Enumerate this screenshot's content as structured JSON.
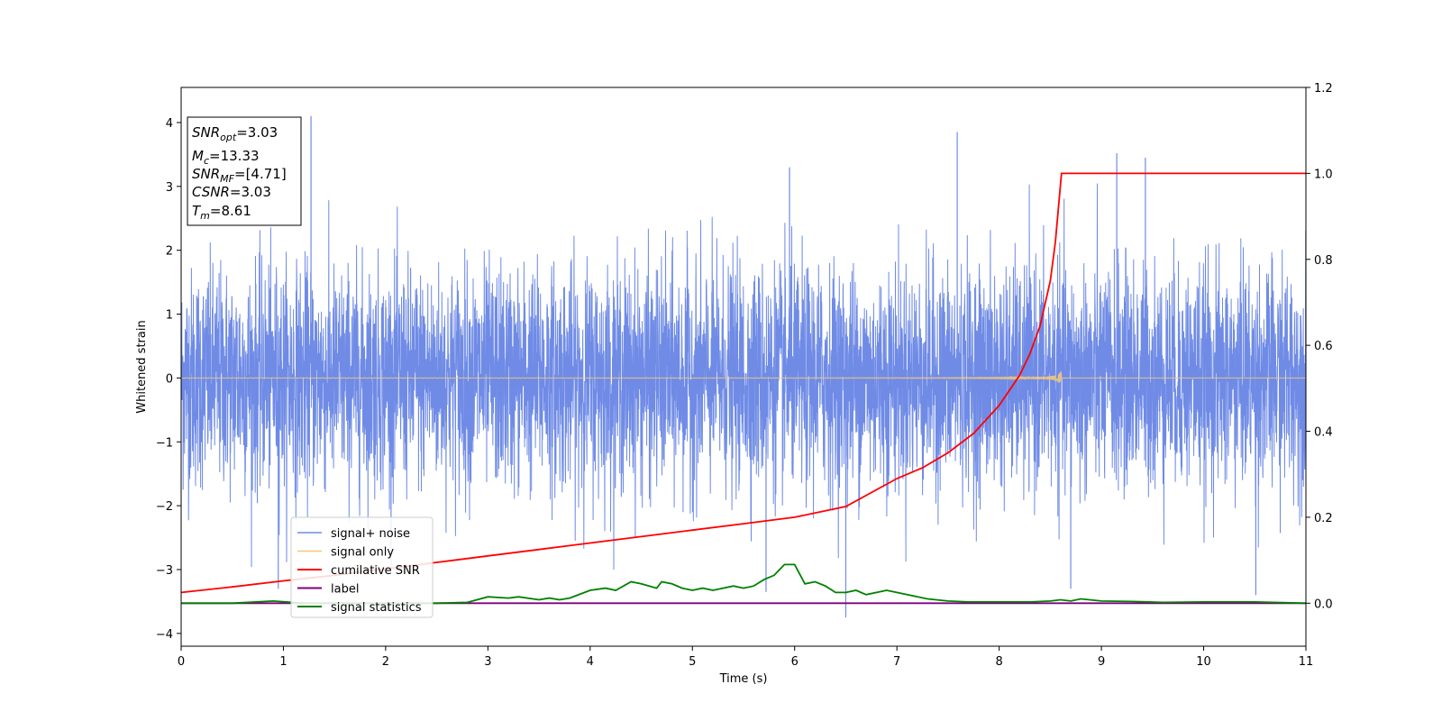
{
  "chart_data": {
    "type": "line",
    "xlabel": "Time (s)",
    "ylabel": "Whitened strain",
    "xlim": [
      0,
      11
    ],
    "ylim": [
      -4.2,
      4.55
    ],
    "y2lim": [
      -0.1,
      1.2
    ],
    "x_ticks": [
      0,
      1,
      2,
      3,
      4,
      5,
      6,
      7,
      8,
      9,
      10,
      11
    ],
    "y_ticks": [
      -4,
      -3,
      -2,
      -1,
      0,
      1,
      2,
      3,
      4
    ],
    "y2_ticks": [
      0.0,
      0.2,
      0.4,
      0.6,
      0.8,
      1.0,
      1.2
    ],
    "y_tick_labels": [
      "−4",
      "−3",
      "−2",
      "−1",
      "0",
      "1",
      "2",
      "3",
      "4"
    ],
    "y2_tick_labels": [
      "0.0",
      "0.2",
      "0.4",
      "0.6",
      "0.8",
      "1.0",
      "1.2"
    ],
    "legend_position": "lower-left",
    "grid": false,
    "series": [
      {
        "name": "signal+ noise",
        "color": "#6f8be6",
        "axis": "left",
        "noise_std": 0.85,
        "extremes": [
          [
            1.27,
            4.1
          ],
          [
            7.59,
            3.85
          ],
          [
            9.15,
            3.52
          ],
          [
            9.43,
            3.45
          ],
          [
            5.95,
            3.3
          ],
          [
            6.5,
            -3.75
          ],
          [
            10.51,
            -3.4
          ],
          [
            5.72,
            -3.35
          ],
          [
            0.95,
            -3.3
          ],
          [
            8.7,
            -3.3
          ]
        ]
      },
      {
        "name": "signal only",
        "color": "#f5c77a",
        "axis": "left",
        "merger_time": 8.61,
        "peak_amplitude": 0.42
      },
      {
        "name": "cumilative SNR",
        "color": "#ff0000",
        "axis": "right",
        "x": [
          0,
          0.5,
          1,
          1.5,
          2,
          2.5,
          3,
          3.5,
          4,
          4.5,
          5,
          5.5,
          6,
          6.5,
          7,
          7.25,
          7.5,
          7.75,
          8,
          8.2,
          8.3,
          8.4,
          8.5,
          8.55,
          8.61,
          11
        ],
        "y": [
          0.025,
          0.038,
          0.052,
          0.065,
          0.08,
          0.095,
          0.11,
          0.125,
          0.14,
          0.155,
          0.17,
          0.185,
          0.2,
          0.225,
          0.29,
          0.315,
          0.35,
          0.395,
          0.46,
          0.53,
          0.58,
          0.645,
          0.75,
          0.84,
          1.0,
          1.0
        ]
      },
      {
        "name": "label",
        "color": "#800080",
        "axis": "right",
        "x": [
          0,
          11
        ],
        "y": [
          0,
          0
        ]
      },
      {
        "name": "signal statistics",
        "color": "#008000",
        "axis": "right",
        "x": [
          0,
          0.5,
          0.9,
          1.2,
          1.5,
          2,
          2.5,
          2.8,
          3,
          3.2,
          3.3,
          3.5,
          3.6,
          3.7,
          3.8,
          4,
          4.15,
          4.25,
          4.4,
          4.5,
          4.65,
          4.7,
          4.8,
          4.9,
          5,
          5.1,
          5.2,
          5.3,
          5.4,
          5.5,
          5.6,
          5.7,
          5.8,
          5.9,
          6,
          6.1,
          6.2,
          6.3,
          6.4,
          6.5,
          6.6,
          6.7,
          6.8,
          6.9,
          7,
          7.1,
          7.3,
          7.5,
          7.7,
          8,
          8.3,
          8.5,
          8.6,
          8.7,
          8.8,
          9,
          9.3,
          9.6,
          10,
          10.5,
          11
        ],
        "y": [
          0.0,
          0.0,
          0.005,
          0.0,
          0.0,
          0.0,
          0.0,
          0.002,
          0.015,
          0.012,
          0.015,
          0.008,
          0.012,
          0.008,
          0.012,
          0.03,
          0.035,
          0.03,
          0.05,
          0.045,
          0.035,
          0.05,
          0.045,
          0.035,
          0.03,
          0.035,
          0.03,
          0.035,
          0.04,
          0.035,
          0.04,
          0.055,
          0.065,
          0.09,
          0.09,
          0.045,
          0.05,
          0.04,
          0.025,
          0.025,
          0.03,
          0.02,
          0.025,
          0.03,
          0.025,
          0.02,
          0.01,
          0.005,
          0.003,
          0.003,
          0.003,
          0.005,
          0.008,
          0.005,
          0.01,
          0.005,
          0.004,
          0.002,
          0.003,
          0.003,
          0.0
        ]
      }
    ]
  },
  "stats_box": {
    "snr_opt": "=3.03",
    "mc": "=13.33",
    "snr_mf": "=[4.71]",
    "csnr": "=3.03",
    "tm": "=8.61"
  }
}
